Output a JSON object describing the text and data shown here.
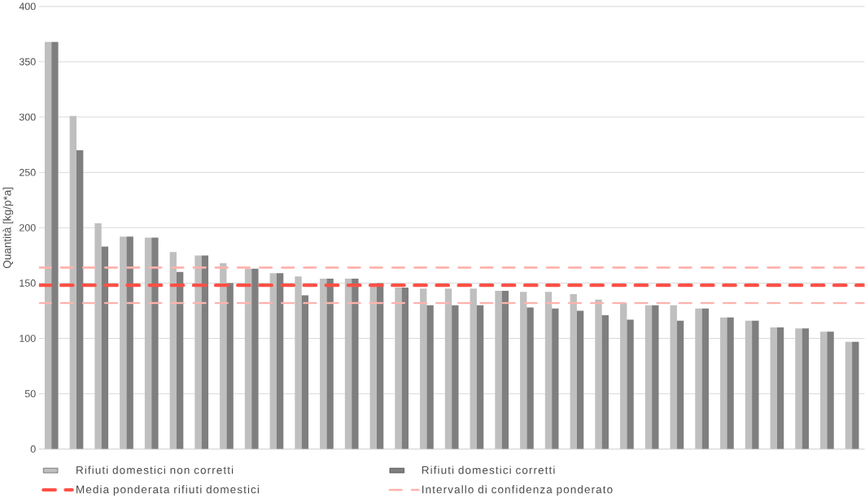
{
  "chart_data": {
    "type": "bar",
    "ylabel": "Quantità [kg/p*a]",
    "categories": [
      null,
      null,
      null,
      null,
      null,
      null,
      null,
      null,
      null,
      null,
      null,
      null,
      null,
      null,
      null,
      null,
      null,
      null,
      null,
      null,
      null,
      null,
      null,
      null,
      null,
      null,
      null,
      null,
      null,
      null,
      null,
      null,
      null
    ],
    "series": [
      {
        "name": "Rifiuti domestici non corretti",
        "color": "#bfbfbf",
        "values": [
          368,
          301,
          204,
          192,
          191,
          178,
          175,
          168,
          163,
          159,
          156,
          154,
          154,
          150,
          146,
          145,
          145,
          145,
          143,
          142,
          142,
          140,
          135,
          132,
          130,
          130,
          127,
          119,
          116,
          110,
          109,
          106,
          97
        ]
      },
      {
        "name": "Rifiuti domestici corretti",
        "color": "#7f7f7f",
        "values": [
          368,
          270,
          183,
          192,
          191,
          160,
          175,
          150,
          163,
          159,
          139,
          154,
          154,
          150,
          146,
          130,
          130,
          130,
          143,
          128,
          127,
          125,
          121,
          117,
          130,
          116,
          127,
          119,
          116,
          110,
          109,
          106,
          97
        ]
      }
    ],
    "ref_lines": [
      {
        "axis": "y",
        "value": 148,
        "label": "Media ponderata rifiuti domestici",
        "color": "#ff5046",
        "line_style": "dashed"
      },
      {
        "axis": "y",
        "value": 164,
        "label": "Intervallo di confidenza ponderato",
        "color": "#ffb3ad",
        "line_style": "dashed"
      },
      {
        "axis": "y",
        "value": 132,
        "color": "#ffb3ad",
        "line_style": "dashed"
      }
    ],
    "ylim": [
      0,
      400
    ],
    "yticks": [
      0,
      50,
      100,
      150,
      200,
      250,
      300,
      350,
      400
    ],
    "grid": "y",
    "legend": "bottom",
    "tick_labels": "y"
  }
}
